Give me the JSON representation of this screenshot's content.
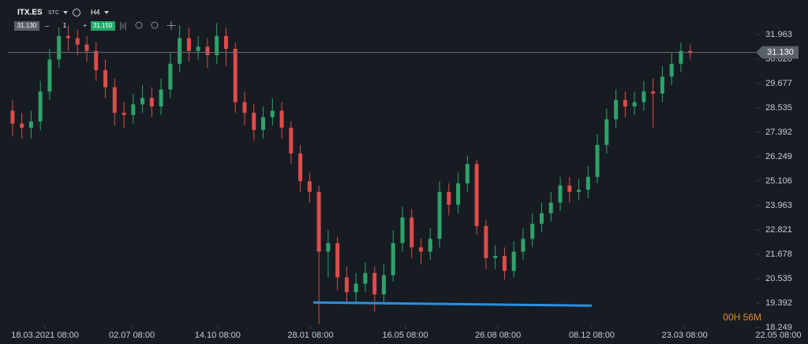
{
  "header": {
    "symbol": "ITX.ES",
    "exchange": "STC",
    "timeframe": "H4",
    "bid": "31.130",
    "minus": "–",
    "quantity": "1",
    "plus": "+",
    "ask": "31.150"
  },
  "timer": "00H 56M",
  "chart_data": {
    "type": "candlestick",
    "x": [
      0.5,
      1.5,
      2.5,
      3.5,
      4.5,
      5.5,
      6.5,
      7.5,
      8.5,
      9.5,
      10.5,
      11.5,
      12.5,
      13.5,
      14.5,
      15.5,
      16.5,
      17.5,
      18.5,
      19.5,
      20.5,
      21.5,
      22.5,
      23.5,
      24.5,
      25.5,
      26.5,
      27.5,
      28.5,
      29.5,
      30.5,
      31.5,
      32.5,
      33.5,
      34.5,
      35.5,
      36.5,
      37.5,
      38.5,
      39.5,
      40.5,
      41.5,
      42.5,
      43.5,
      44.5,
      45.5,
      46.5,
      47.5,
      48.5,
      49.5,
      50.5,
      51.5,
      52.5,
      53.5,
      54.5,
      55.5,
      56.5,
      57.5,
      58.5,
      59.5,
      60.5,
      61.5,
      62.5,
      63.5,
      64.5,
      65.5,
      66.5,
      67.5,
      68.5,
      69.5,
      70.5,
      71.5,
      72.5,
      73.5
    ],
    "open": [
      28.4,
      27.8,
      27.6,
      27.9,
      29.3,
      30.8,
      31.9,
      31.8,
      31.5,
      31.2,
      30.3,
      29.5,
      28.3,
      28.2,
      28.7,
      29.0,
      28.6,
      29.4,
      30.6,
      31.8,
      31.2,
      31.4,
      31.0,
      31.9,
      31.3,
      28.8,
      28.3,
      27.5,
      28.1,
      28.4,
      27.6,
      26.4,
      25.1,
      24.6,
      21.8,
      22.2,
      20.6,
      19.9,
      20.3,
      20.8,
      19.8,
      20.7,
      22.2,
      23.4,
      22.0,
      21.8,
      22.4,
      24.6,
      24.0,
      25.0,
      25.9,
      23.0,
      21.5,
      21.6,
      20.9,
      21.8,
      22.4,
      23.1,
      23.6,
      24.1,
      24.9,
      24.6,
      24.7,
      25.3,
      26.8,
      28.0,
      28.9,
      28.6,
      28.8,
      29.3,
      29.2,
      30.0,
      30.6,
      31.2
    ],
    "high": [
      28.9,
      28.3,
      28.4,
      29.8,
      31.3,
      32.3,
      32.4,
      32.2,
      31.9,
      31.6,
      30.8,
      29.9,
      28.8,
      29.2,
      29.6,
      29.5,
      29.9,
      31.1,
      32.4,
      32.3,
      31.9,
      31.8,
      32.5,
      32.3,
      31.6,
      29.3,
      28.7,
      28.6,
      29.0,
      28.8,
      27.9,
      26.8,
      25.5,
      24.9,
      22.8,
      22.5,
      21.1,
      20.8,
      21.3,
      21.1,
      21.2,
      22.8,
      23.9,
      23.8,
      22.4,
      22.9,
      25.1,
      25.0,
      25.5,
      26.3,
      26.1,
      23.3,
      22.1,
      22.0,
      22.3,
      22.9,
      23.6,
      24.1,
      24.6,
      25.3,
      25.3,
      25.2,
      25.8,
      27.3,
      28.5,
      29.4,
      29.3,
      29.3,
      29.8,
      29.9,
      30.5,
      31.1,
      31.6,
      31.5
    ],
    "low": [
      27.2,
      27.1,
      27.1,
      27.5,
      28.9,
      30.4,
      31.2,
      31.0,
      30.7,
      29.8,
      29.0,
      27.7,
      27.6,
      27.8,
      28.3,
      28.1,
      28.2,
      29.0,
      30.2,
      30.7,
      30.8,
      30.4,
      30.6,
      30.5,
      28.3,
      27.7,
      27.0,
      27.1,
      27.7,
      27.1,
      25.9,
      24.6,
      24.1,
      18.4,
      20.6,
      20.0,
      19.4,
      19.4,
      19.9,
      19.0,
      19.4,
      20.4,
      21.8,
      21.5,
      21.2,
      21.4,
      22.0,
      23.5,
      23.6,
      24.6,
      22.6,
      21.0,
      21.0,
      20.5,
      20.6,
      21.4,
      22.0,
      22.7,
      23.2,
      23.7,
      24.1,
      24.2,
      24.3,
      25.0,
      26.4,
      27.6,
      28.1,
      28.2,
      28.4,
      27.6,
      28.8,
      29.6,
      30.2,
      30.8
    ],
    "close": [
      27.8,
      27.6,
      27.9,
      29.3,
      30.8,
      31.9,
      31.8,
      31.5,
      31.2,
      30.3,
      29.5,
      28.3,
      28.2,
      28.7,
      29.0,
      28.6,
      29.4,
      30.6,
      31.8,
      31.2,
      31.4,
      31.0,
      31.9,
      31.3,
      28.8,
      28.3,
      27.5,
      28.1,
      28.4,
      27.6,
      26.4,
      25.1,
      24.6,
      21.8,
      22.2,
      20.6,
      19.9,
      20.3,
      20.8,
      19.8,
      20.7,
      22.2,
      23.4,
      22.0,
      21.8,
      22.4,
      24.6,
      24.0,
      25.0,
      25.9,
      23.0,
      21.5,
      21.6,
      20.9,
      21.8,
      22.4,
      23.1,
      23.6,
      24.1,
      24.9,
      24.6,
      24.7,
      25.3,
      26.8,
      28.0,
      28.9,
      28.6,
      28.8,
      29.3,
      29.2,
      30.0,
      30.6,
      31.2,
      31.1
    ],
    "up_color": "#2ea36b",
    "down_color": "#e04b4b",
    "xlim": [
      0,
      85
    ],
    "xticks": [
      {
        "value": 4.0,
        "label": "18.03.2021 08:00"
      },
      {
        "value": 13.35,
        "label": "02.07 08:00"
      },
      {
        "value": 22.6,
        "label": "14.10 08:00"
      },
      {
        "value": 32.6,
        "label": "28.01 08:00"
      },
      {
        "value": 42.8,
        "label": "16.05 08:00"
      },
      {
        "value": 52.8,
        "label": "26.08 08:00"
      },
      {
        "value": 62.9,
        "label": "08.12 08:00"
      },
      {
        "value": 72.9,
        "label": "23.03 08:00"
      },
      {
        "value": 83.0,
        "label": "22.05 08:00"
      }
    ],
    "ylim": [
      17.733,
      33.217
    ],
    "yticks": [
      31.963,
      {
        "value": 30.82,
        "label": "30.820"
      },
      29.677,
      28.535,
      27.392,
      26.249,
      25.106,
      23.963,
      22.821,
      21.678,
      20.535,
      19.392,
      18.249
    ],
    "last_price": {
      "value": 31.13,
      "label": "31.130"
    },
    "trendline": {
      "x": [
        32.9,
        62.9
      ],
      "y": [
        19.42,
        19.27
      ],
      "color": "#2a8fe0"
    }
  }
}
